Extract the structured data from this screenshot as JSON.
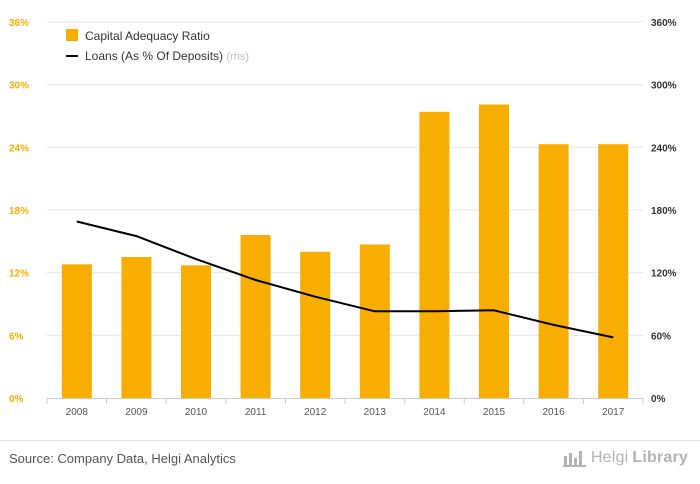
{
  "chart_data": {
    "type": "bar",
    "categories": [
      "2008",
      "2009",
      "2010",
      "2011",
      "2012",
      "2013",
      "2014",
      "2015",
      "2016",
      "2017"
    ],
    "series": [
      {
        "name": "Capital Adequacy Ratio",
        "type": "bar",
        "axis": "left",
        "color": "#f7ae00",
        "values": [
          12.8,
          13.5,
          12.7,
          15.6,
          14.0,
          14.7,
          27.4,
          28.1,
          24.3,
          24.3
        ]
      },
      {
        "name": "Loans (As % Of Deposits)",
        "name_suffix": "(rhs)",
        "type": "line",
        "axis": "right",
        "color": "#000000",
        "values": [
          169,
          155,
          133,
          113,
          97,
          83,
          83,
          84,
          70,
          58
        ]
      }
    ],
    "y_left": {
      "min": 0,
      "max": 36,
      "ticks": [
        "0%",
        "6%",
        "12%",
        "18%",
        "24%",
        "30%",
        "36%"
      ],
      "color": "#f7ae00"
    },
    "y_right": {
      "min": 0,
      "max": 360,
      "ticks": [
        "0%",
        "60%",
        "120%",
        "180%",
        "240%",
        "300%",
        "360%"
      ]
    },
    "grid": true,
    "legend_position": "top-left"
  },
  "footer": {
    "source": "Source: Company Data, Helgi Analytics",
    "brand_part1": "Helgi",
    "brand_part2": "Library"
  }
}
